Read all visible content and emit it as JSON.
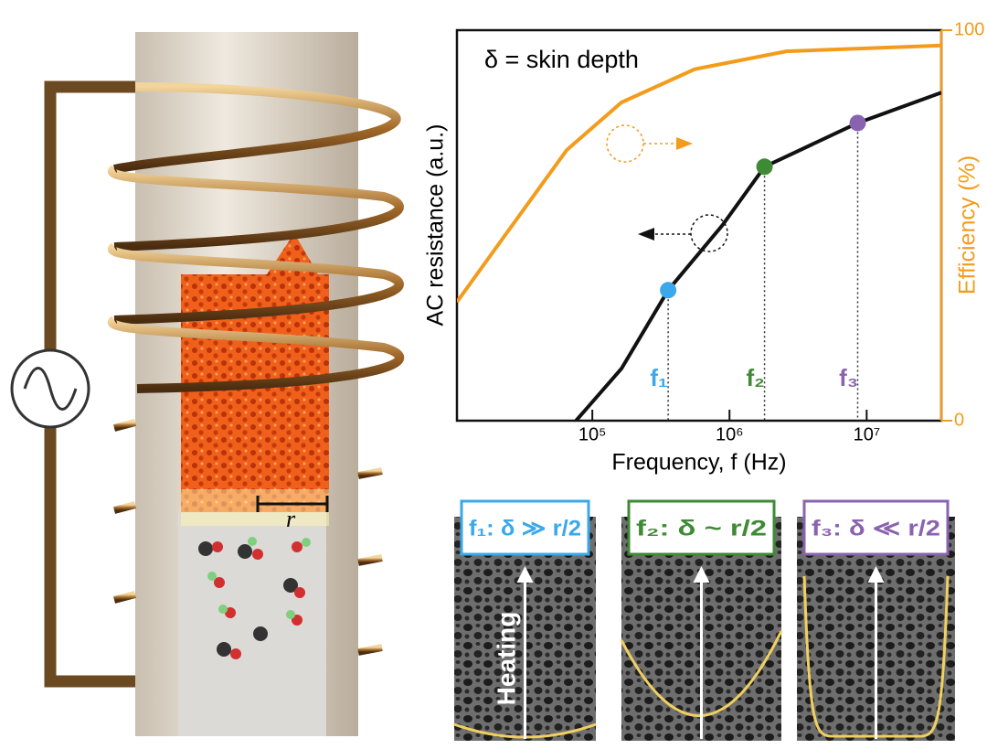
{
  "chart_data": {
    "type": "line",
    "annotation": "δ = skin depth",
    "y_label": "AC resistance (a.u.)",
    "y2_label": "Efficiency (%)",
    "x_label": "Frequency, f (Hz)",
    "xscale": "log",
    "yscale": "log",
    "xlim": [
      10300,
      35000000
    ],
    "ylim": [
      0.135,
      54
    ],
    "y2lim": [
      0,
      100
    ],
    "xticks": [
      {
        "value": 100000,
        "label": "10⁵"
      },
      {
        "value": 1000000,
        "label": "10⁶"
      },
      {
        "value": 10000000,
        "label": "10⁷"
      }
    ],
    "y2ticks": [
      0,
      100
    ],
    "series": [
      {
        "color": "#111111",
        "axis": "y",
        "x": [
          76000,
          163000,
          357000,
          885000,
          1800000,
          8600000,
          35000000
        ],
        "values": [
          0.135,
          0.3,
          1,
          2.7,
          6.65,
          13,
          20.7
        ]
      },
      {
        "color": "#f39c1c",
        "axis": "y2",
        "x": [
          10300,
          25900,
          65000,
          163000,
          558000,
          2600000,
          35000000
        ],
        "values": [
          30.4,
          49.9,
          69.3,
          81.5,
          90,
          94.6,
          96.1
        ]
      }
    ],
    "points": [
      {
        "label": "f₁",
        "color": "#3aa8ea",
        "x": 357000,
        "y": 1
      },
      {
        "label": "f₂",
        "color": "#3f8a35",
        "x": 1800000,
        "y": 6.65
      },
      {
        "label": "f₃",
        "color": "#8a63b0",
        "x": 8600000,
        "y": 13
      }
    ]
  },
  "panels": [
    {
      "label": "f₁: δ ≫ r/2",
      "color": "#3aa8ea"
    },
    {
      "label": "f₂: δ ~ r/2",
      "color": "#3f8a35"
    },
    {
      "label": "f₃: δ ≪ r/2",
      "color": "#8a63b0"
    }
  ],
  "heating_label": "Heating",
  "radius_label": "r"
}
